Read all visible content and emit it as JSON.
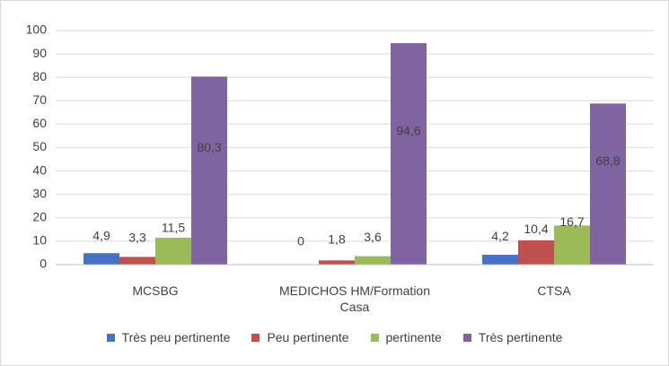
{
  "chart_data": {
    "type": "bar",
    "categories": [
      "MCSBG",
      "MEDICHOS HM/Formation Casa",
      "CTSA"
    ],
    "series": [
      {
        "name": "Très peu pertinente",
        "color": "#4472c4",
        "values": [
          4.9,
          0,
          4.2
        ],
        "value_labels": [
          "4,9",
          "0",
          "4,2"
        ]
      },
      {
        "name": "Peu pertinente",
        "color": "#c0504d",
        "values": [
          3.3,
          1.8,
          10.4
        ],
        "value_labels": [
          "3,3",
          "1,8",
          "10,4"
        ]
      },
      {
        "name": "pertinente",
        "color": "#9bbb59",
        "values": [
          11.5,
          3.6,
          16.7
        ],
        "value_labels": [
          "11,5",
          "3,6",
          "16,7"
        ]
      },
      {
        "name": "Très pertinente",
        "color": "#8064a2",
        "values": [
          80.3,
          94.6,
          68.8
        ],
        "value_labels": [
          "80,3",
          "94,6",
          "68,8"
        ]
      }
    ],
    "ylim": [
      0,
      100
    ],
    "yticks": [
      0,
      10,
      20,
      30,
      40,
      50,
      60,
      70,
      80,
      90,
      100
    ],
    "grid": true,
    "legend": "bottom"
  }
}
